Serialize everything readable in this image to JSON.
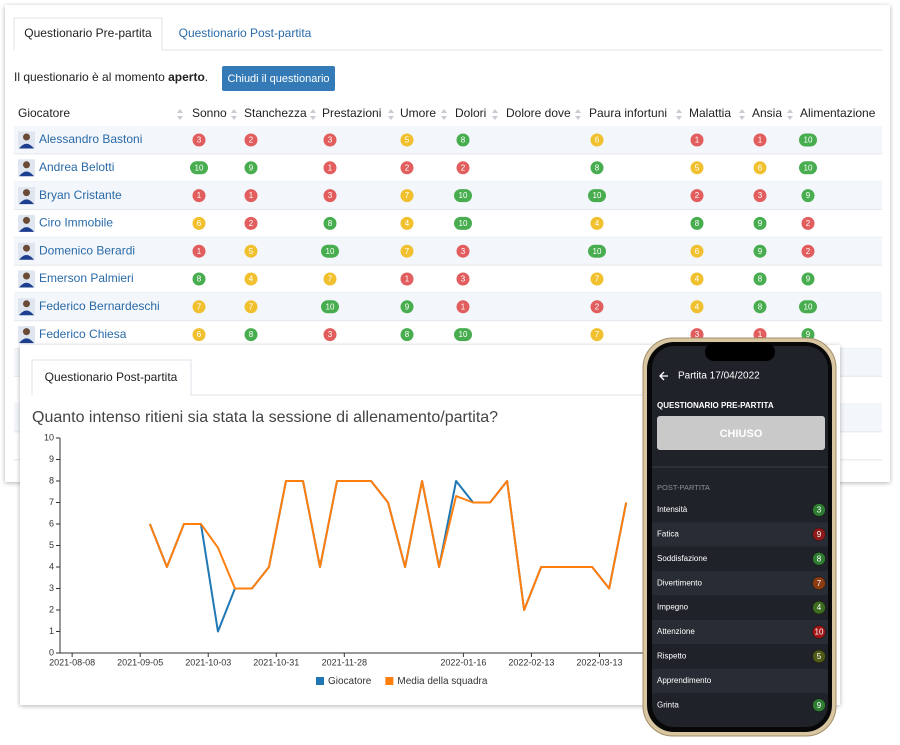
{
  "tabs": {
    "pre": "Questionario Pre-partita",
    "post": "Questionario Post-partita"
  },
  "status": {
    "text": "Il questionario è al momento ",
    "state": "aperto",
    "end": "."
  },
  "button": "Chiudi il questionario",
  "table": {
    "columns": [
      "Giocatore",
      "Sonno",
      "Stanchezza",
      "Prestazioni",
      "Umore",
      "Dolori",
      "Dolore dove",
      "Paura infortuni",
      "Malattia",
      "Ansia",
      "Alimentazione"
    ],
    "rows": [
      [
        "Alessandro Bastoni",
        3,
        2,
        3,
        5,
        8,
        null,
        6,
        1,
        1,
        10
      ],
      [
        "Andrea Belotti",
        10,
        9,
        1,
        2,
        2,
        null,
        8,
        5,
        6,
        10
      ],
      [
        "Bryan Cristante",
        1,
        1,
        3,
        7,
        10,
        null,
        10,
        2,
        3,
        9
      ],
      [
        "Ciro Immobile",
        6,
        2,
        8,
        4,
        10,
        null,
        4,
        8,
        9,
        2
      ],
      [
        "Domenico Berardi",
        1,
        5,
        10,
        7,
        3,
        null,
        10,
        6,
        9,
        2
      ],
      [
        "Emerson Palmieri",
        8,
        4,
        7,
        1,
        3,
        null,
        7,
        4,
        8,
        9
      ],
      [
        "Federico Bernardeschi",
        7,
        7,
        10,
        9,
        1,
        null,
        2,
        4,
        8,
        10
      ],
      [
        "Federico Chiesa",
        6,
        8,
        3,
        8,
        10,
        null,
        7,
        3,
        1,
        9
      ]
    ]
  },
  "post_card": {
    "tab": "Questionario Post-partita"
  },
  "chart_data": {
    "type": "line",
    "title": "Quanto intenso ritieni sia stata la sessione di allenamento/partita?",
    "x": [
      "2021-09-09",
      "2021-09-16",
      "2021-09-23",
      "2021-09-30",
      "2021-10-07",
      "2021-10-14",
      "2021-10-21",
      "2021-10-28",
      "2021-11-04",
      "2021-11-11",
      "2021-11-18",
      "2021-11-25",
      "2021-12-02",
      "2021-12-09",
      "2021-12-16",
      "2021-12-23",
      "2021-12-30",
      "2022-01-06",
      "2022-01-13",
      "2022-01-20",
      "2022-01-27",
      "2022-02-03",
      "2022-02-10",
      "2022-02-17",
      "2022-02-24",
      "2022-03-03",
      "2022-03-10",
      "2022-03-17",
      "2022-03-24"
    ],
    "series": [
      {
        "name": "Giocatore",
        "color": "#1f77b4",
        "values": [
          6,
          4,
          6,
          6,
          1,
          3,
          3,
          4,
          8,
          8,
          4,
          8,
          8,
          8,
          7,
          4,
          8,
          4,
          8,
          7,
          7,
          8,
          2,
          4,
          4,
          4,
          4,
          3,
          7
        ]
      },
      {
        "name": "Media della squadra",
        "color": "#ff7f0e",
        "values": [
          6,
          4,
          6,
          6,
          4.9,
          3,
          3,
          4,
          8,
          8,
          4,
          8,
          8,
          8,
          7,
          4,
          8,
          4,
          7.3,
          7,
          7,
          8,
          2,
          4,
          4,
          4,
          4,
          3,
          7
        ]
      }
    ],
    "xlim": [
      "2021-08-03",
      "2022-05-01"
    ],
    "xticks": [
      "2021-08-08",
      "2021-09-05",
      "2021-10-03",
      "2021-10-31",
      "2021-11-28",
      "2022-01-16",
      "2022-02-13",
      "2022-03-13"
    ],
    "ylim": [
      0,
      10
    ],
    "yticks": [
      0,
      1,
      2,
      3,
      4,
      5,
      6,
      7,
      8,
      9,
      10
    ],
    "grid": false
  },
  "phone": {
    "header": "Partita 17/04/2022",
    "pre_section": "QUESTIONARIO PRE-PARTITA",
    "pre_button": "CHIUSO",
    "post_section": "POST-PARTITA",
    "items": [
      {
        "label": "Intensità",
        "value": 3,
        "color": "#2e7d32"
      },
      {
        "label": "Fatica",
        "value": 9,
        "color": "#8e1b1b"
      },
      {
        "label": "Soddisfazione",
        "value": 8,
        "color": "#2e7d32"
      },
      {
        "label": "Divertimento",
        "value": 7,
        "color": "#8a3b12"
      },
      {
        "label": "Impegno",
        "value": 4,
        "color": "#3d6b1f"
      },
      {
        "label": "Attenzione",
        "value": 10,
        "color": "#a31515"
      },
      {
        "label": "Rispetto",
        "value": 5,
        "color": "#4f5a16"
      },
      {
        "label": "Apprendimento"
      },
      {
        "label": "Grinta",
        "value": 9,
        "color": "#2e7d32"
      }
    ]
  }
}
